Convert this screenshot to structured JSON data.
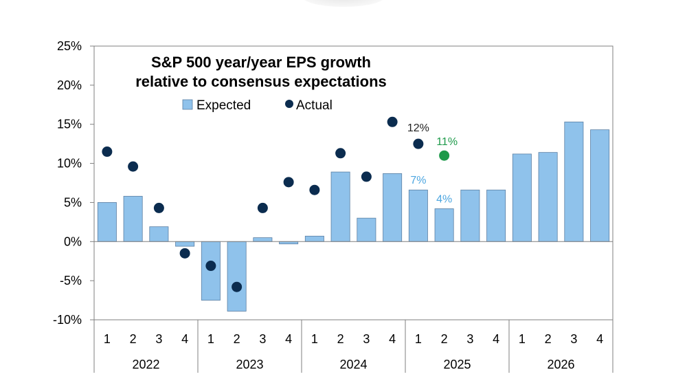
{
  "chart_data": {
    "type": "bar",
    "title_lines": [
      "S&P 500 year/year EPS growth",
      "relative to consensus expectations"
    ],
    "legend": {
      "expected": "Expected",
      "actual": "Actual"
    },
    "ylim": [
      -10,
      25
    ],
    "yticks": [
      25,
      20,
      15,
      10,
      5,
      0,
      -5,
      -10
    ],
    "ytick_labels": [
      "25%",
      "20%",
      "15%",
      "10%",
      "5%",
      "0%",
      "-5%",
      "-10%"
    ],
    "quarter_labels": [
      "1",
      "2",
      "3",
      "4",
      "1",
      "2",
      "3",
      "4",
      "1",
      "2",
      "3",
      "4",
      "1",
      "2",
      "3",
      "4",
      "1",
      "2",
      "3",
      "4"
    ],
    "years": [
      "2022",
      "2023",
      "2024",
      "2025",
      "2026"
    ],
    "series": [
      {
        "name": "Expected",
        "kind": "bar",
        "values": [
          5.0,
          5.8,
          1.9,
          -0.6,
          -7.5,
          -8.9,
          0.5,
          -0.3,
          0.7,
          8.9,
          3.0,
          8.7,
          6.6,
          4.2,
          6.6,
          6.6,
          11.2,
          11.4,
          15.3,
          14.3
        ]
      },
      {
        "name": "Actual",
        "kind": "dot",
        "values": [
          11.5,
          9.6,
          4.3,
          -1.5,
          -3.1,
          -5.8,
          4.3,
          7.6,
          6.6,
          11.3,
          8.3,
          15.3,
          12.5,
          11.0,
          null,
          null,
          null,
          null,
          null,
          null
        ]
      }
    ],
    "annotations": [
      {
        "text": "12%",
        "x": 12,
        "y": 12.5,
        "color": "#222222"
      },
      {
        "text": "11%",
        "x": 13,
        "y": 11.0,
        "color": "#1e9a4a"
      },
      {
        "text": "7%",
        "x": 12,
        "y": 6.6,
        "color": "#4da6e0"
      },
      {
        "text": "4%",
        "x": 13,
        "y": 4.2,
        "color": "#4da6e0"
      }
    ],
    "colors": {
      "bar": "#8fc2eb",
      "bar_stroke": "#5b7fa3",
      "dot": "#0b2c4f",
      "dot_highlight": "#1e9a4a",
      "axis": "#7f7f7f"
    },
    "highlight_index": 13
  }
}
